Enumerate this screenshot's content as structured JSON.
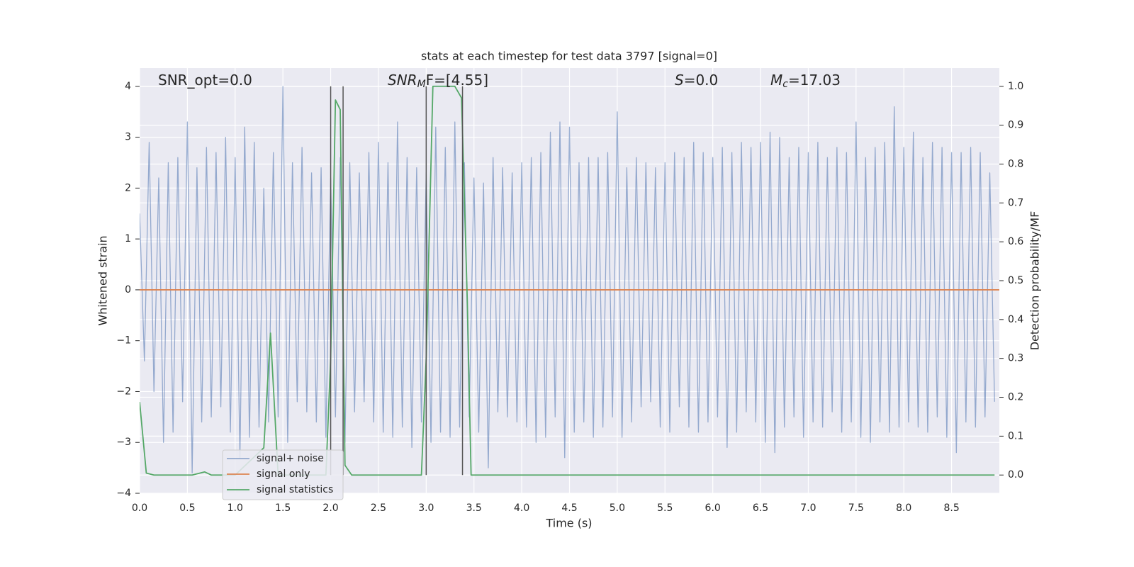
{
  "chart_data": {
    "type": "line",
    "title": "stats at each timestep for test data 3797 [signal=0]",
    "xlabel": "Time (s)",
    "ylabel": "Whitened strain",
    "y2label": "Detection probability/MF",
    "xlim": [
      0,
      9.0
    ],
    "ylim": [
      -4.0,
      4.36
    ],
    "y2lim": [
      -0.047,
      1.047
    ],
    "xticks": [
      {
        "value": 0,
        "label": "0.0"
      },
      0.5,
      {
        "value": 1,
        "label": "1.0"
      },
      1.5,
      {
        "value": 2,
        "label": "2.0"
      },
      2.5,
      {
        "value": 3,
        "label": "3.0"
      },
      3.5,
      {
        "value": 4,
        "label": "4.0"
      },
      4.5,
      {
        "value": 5,
        "label": "5.0"
      },
      5.5,
      {
        "value": 6,
        "label": "6.0"
      },
      6.5,
      {
        "value": 7,
        "label": "7.0"
      },
      7.5,
      {
        "value": 8,
        "label": "8.0"
      },
      8.5
    ],
    "yticks": [
      {
        "value": -4,
        "label": "−4"
      },
      {
        "value": -3,
        "label": "−3"
      },
      {
        "value": -2,
        "label": "−2"
      },
      {
        "value": -1,
        "label": "−1"
      },
      0,
      1,
      2,
      3,
      4
    ],
    "y2ticks": [
      {
        "value": 0,
        "label": "0.0"
      },
      0.1,
      0.2,
      0.3,
      0.4,
      0.5,
      0.6,
      0.7,
      0.8,
      0.9,
      {
        "value": 1,
        "label": "1.0"
      }
    ],
    "grid": true,
    "legend": "lower left",
    "vlines": [
      2.0,
      2.13,
      3.0,
      3.38
    ],
    "vline_color": "#555555",
    "annotations": [
      [
        {
          "t": "SNR_opt=0.0",
          "style": "normal"
        }
      ],
      [
        {
          "t": "SNR",
          "style": "italic"
        },
        {
          "t": "M",
          "style": "sub"
        },
        {
          "t": "F=[4.55]",
          "style": "normal"
        }
      ],
      [
        {
          "t": "S",
          "style": "italic"
        },
        {
          "t": "=0.0",
          "style": "normal"
        }
      ],
      [
        {
          "t": "M",
          "style": "italic"
        },
        {
          "t": "c",
          "style": "sub"
        },
        {
          "t": "=17.03",
          "style": "normal"
        }
      ]
    ],
    "series": [
      {
        "name": "signal+ noise",
        "color": "#4c72b0",
        "opacity": 0.55,
        "x": [
          0,
          0.05,
          0.1,
          0.15,
          0.2,
          0.25,
          0.3,
          0.35,
          0.4,
          0.45,
          0.5,
          0.55,
          0.6,
          0.65,
          0.7,
          0.75,
          0.8,
          0.85,
          0.9,
          0.95,
          1,
          1.05,
          1.1,
          1.15,
          1.2,
          1.25,
          1.3,
          1.35,
          1.4,
          1.45,
          1.5,
          1.55,
          1.6,
          1.65,
          1.7,
          1.75,
          1.8,
          1.85,
          1.9,
          1.95,
          2,
          2.05,
          2.1,
          2.15,
          2.2,
          2.25,
          2.3,
          2.35,
          2.4,
          2.45,
          2.5,
          2.55,
          2.6,
          2.65,
          2.7,
          2.75,
          2.8,
          2.85,
          2.9,
          2.95,
          3,
          3.05,
          3.1,
          3.15,
          3.2,
          3.25,
          3.3,
          3.35,
          3.4,
          3.45,
          3.5,
          3.55,
          3.6,
          3.65,
          3.7,
          3.75,
          3.8,
          3.85,
          3.9,
          3.95,
          4,
          4.05,
          4.1,
          4.15,
          4.2,
          4.25,
          4.3,
          4.35,
          4.4,
          4.45,
          4.5,
          4.55,
          4.6,
          4.65,
          4.7,
          4.75,
          4.8,
          4.85,
          4.9,
          4.95,
          5,
          5.05,
          5.1,
          5.15,
          5.2,
          5.25,
          5.3,
          5.35,
          5.4,
          5.45,
          5.5,
          5.55,
          5.6,
          5.65,
          5.7,
          5.75,
          5.8,
          5.85,
          5.9,
          5.95,
          6,
          6.05,
          6.1,
          6.15,
          6.2,
          6.25,
          6.3,
          6.35,
          6.4,
          6.45,
          6.5,
          6.55,
          6.6,
          6.65,
          6.7,
          6.75,
          6.8,
          6.85,
          6.9,
          6.95,
          7,
          7.05,
          7.1,
          7.15,
          7.2,
          7.25,
          7.3,
          7.35,
          7.4,
          7.45,
          7.5,
          7.55,
          7.6,
          7.65,
          7.7,
          7.75,
          7.8,
          7.85,
          7.9,
          7.95,
          8,
          8.05,
          8.1,
          8.15,
          8.2,
          8.25,
          8.3,
          8.35,
          8.4,
          8.45,
          8.5,
          8.55,
          8.6,
          8.65,
          8.7,
          8.75,
          8.8,
          8.85,
          8.9,
          8.95
        ],
        "values": [
          1.5,
          -1.4,
          2.9,
          -2.0,
          2.2,
          -3.0,
          2.5,
          -2.8,
          2.6,
          -2.2,
          3.3,
          -3.6,
          2.4,
          -2.6,
          2.8,
          -2.5,
          2.7,
          -2.3,
          3.0,
          -2.8,
          2.6,
          -3.3,
          3.2,
          -2.9,
          2.9,
          -2.7,
          2.0,
          -2.6,
          2.7,
          -2.5,
          4.0,
          -3.0,
          2.5,
          -2.2,
          2.8,
          -2.4,
          2.3,
          -2.6,
          2.4,
          -2.9,
          2.2,
          -2.5,
          2.6,
          -3.0,
          2.5,
          -2.4,
          2.3,
          -2.2,
          2.7,
          -2.6,
          2.9,
          -2.8,
          2.5,
          -2.9,
          3.3,
          -2.7,
          2.6,
          -3.1,
          2.4,
          -2.6,
          2.3,
          -3.0,
          3.2,
          -2.8,
          2.8,
          -2.9,
          3.3,
          -2.7,
          2.5,
          -2.5,
          2.2,
          -2.8,
          2.1,
          -3.5,
          2.6,
          -2.4,
          2.4,
          -2.5,
          2.3,
          -2.6,
          2.5,
          -2.7,
          2.6,
          -3.0,
          2.7,
          -2.9,
          3.1,
          -2.5,
          3.3,
          -3.3,
          3.2,
          -2.8,
          2.5,
          -2.6,
          2.6,
          -2.9,
          2.6,
          -2.7,
          2.7,
          -2.5,
          3.5,
          -2.9,
          2.4,
          -2.6,
          2.6,
          -2.3,
          2.5,
          -2.2,
          2.4,
          -2.7,
          2.5,
          -2.8,
          2.7,
          -2.3,
          2.6,
          -2.7,
          2.9,
          -2.8,
          2.7,
          -2.6,
          2.6,
          -2.5,
          2.8,
          -3.1,
          2.7,
          -2.8,
          2.9,
          -2.4,
          2.8,
          -2.6,
          2.9,
          -3.0,
          3.1,
          -3.2,
          3.0,
          -2.7,
          2.6,
          -2.5,
          2.8,
          -2.9,
          2.7,
          -2.6,
          2.9,
          -2.7,
          2.6,
          -2.4,
          2.8,
          -2.8,
          2.7,
          -2.6,
          3.3,
          -2.9,
          2.6,
          -3.0,
          2.8,
          -2.6,
          2.9,
          -2.8,
          3.6,
          -2.7,
          2.8,
          -2.6,
          3.1,
          -2.7,
          2.6,
          -2.8,
          2.9,
          -2.5,
          2.8,
          -2.9,
          2.7,
          -3.2,
          2.7,
          -2.6,
          2.8,
          -2.7,
          2.7,
          -2.5,
          2.3,
          -2.2
        ]
      },
      {
        "name": "signal only",
        "color": "#dd8452",
        "opacity": 1,
        "x": [
          0,
          9.0
        ],
        "values": [
          0,
          0
        ]
      },
      {
        "name": "signal statistics",
        "color": "#55a868",
        "opacity": 1,
        "axis": "y2",
        "x": [
          0,
          0.07,
          0.15,
          0.55,
          0.68,
          0.75,
          1.0,
          1.3,
          1.37,
          1.45,
          1.95,
          2.0,
          2.05,
          2.1,
          2.15,
          2.22,
          2.95,
          3.0,
          3.07,
          3.3,
          3.37,
          3.43,
          3.47,
          8.95
        ],
        "values": [
          0.188,
          0.005,
          0,
          0,
          0.008,
          0,
          0,
          0.07,
          0.365,
          0,
          0,
          0.3,
          0.965,
          0.94,
          0.025,
          0,
          0,
          0.3,
          1.0,
          1.0,
          0.97,
          0.45,
          0,
          0
        ]
      }
    ]
  }
}
